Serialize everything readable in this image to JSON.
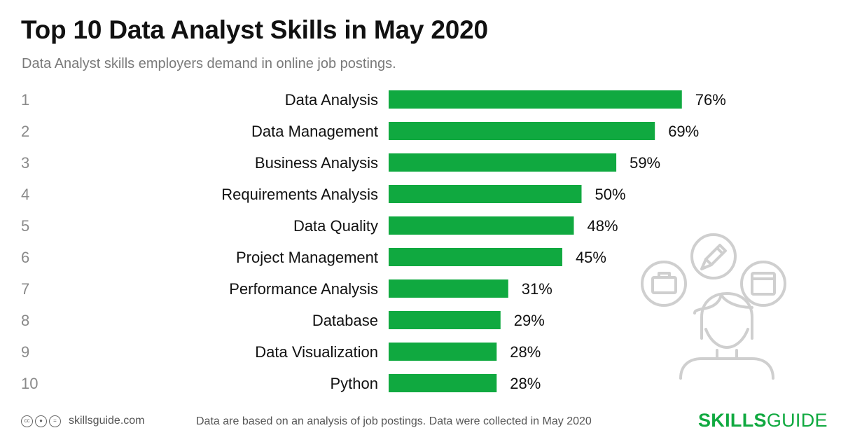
{
  "header": {
    "title": "Top 10 Data Analyst Skills in May 2020",
    "subtitle": "Data Analyst skills employers demand in online job postings."
  },
  "chart_data": {
    "type": "bar",
    "orientation": "horizontal",
    "ranks": [
      "1",
      "2",
      "3",
      "4",
      "5",
      "6",
      "7",
      "8",
      "9",
      "10"
    ],
    "categories": [
      "Data Analysis",
      "Data Management",
      "Business Analysis",
      "Requirements Analysis",
      "Data Quality",
      "Project Management",
      "Performance Analysis",
      "Database",
      "Data Visualization",
      "Python"
    ],
    "values": [
      76,
      69,
      59,
      50,
      48,
      45,
      31,
      29,
      28,
      28
    ],
    "value_labels": [
      "76%",
      "69%",
      "59%",
      "50%",
      "48%",
      "45%",
      "31%",
      "29%",
      "28%",
      "28%"
    ],
    "unit": "%",
    "bar_color": "#10a940",
    "xlim": [
      0,
      100
    ],
    "grid": false,
    "legend": "none"
  },
  "footer": {
    "license_icons": [
      "cc-icon",
      "by-icon",
      "nd-icon"
    ],
    "site": "skillsguide.com",
    "note": "Data are based on an analysis of job postings. Data were collected in May 2020",
    "brand_bold": "SKILLS",
    "brand_light": "GUIDE",
    "brand_color": "#10a940"
  },
  "illustration": {
    "icons": [
      "pencil-icon",
      "briefcase-icon",
      "window-icon",
      "person-icon"
    ],
    "color": "#cfcfcf"
  }
}
